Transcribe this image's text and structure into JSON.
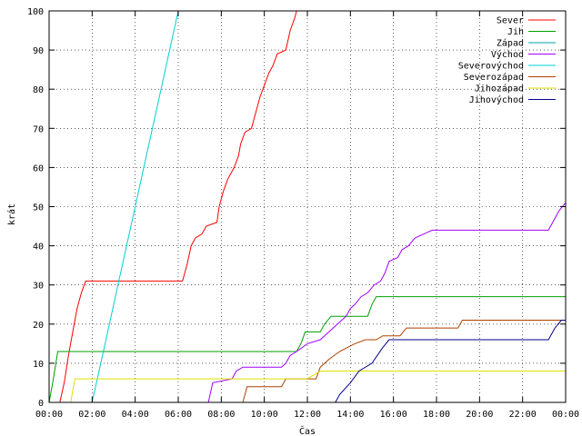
{
  "chart_data": {
    "type": "line",
    "title": "",
    "xlabel": "Čas",
    "ylabel": "krát",
    "xlim": [
      0,
      24
    ],
    "ylim": [
      0,
      100
    ],
    "xticks": [
      0,
      2,
      4,
      6,
      8,
      10,
      12,
      14,
      16,
      18,
      20,
      22,
      24
    ],
    "xtick_labels": [
      "00:00",
      "02:00",
      "04:00",
      "06:00",
      "08:00",
      "10:00",
      "12:00",
      "14:00",
      "16:00",
      "18:00",
      "20:00",
      "22:00",
      "00:00"
    ],
    "yticks": [
      0,
      10,
      20,
      30,
      40,
      50,
      60,
      70,
      80,
      90,
      100
    ],
    "grid": true,
    "legend_position": "top-right",
    "series": [
      {
        "name": "Sever",
        "color": "#ff0000",
        "points": [
          [
            0.5,
            0
          ],
          [
            0.7,
            5
          ],
          [
            0.9,
            12
          ],
          [
            1.1,
            18
          ],
          [
            1.3,
            24
          ],
          [
            1.5,
            28
          ],
          [
            1.7,
            31
          ],
          [
            6.2,
            31
          ],
          [
            6.4,
            35
          ],
          [
            6.6,
            40
          ],
          [
            6.8,
            42
          ],
          [
            7.1,
            43
          ],
          [
            7.3,
            45
          ],
          [
            7.8,
            46
          ],
          [
            7.9,
            50
          ],
          [
            8.1,
            54
          ],
          [
            8.3,
            57
          ],
          [
            8.6,
            60
          ],
          [
            8.8,
            63
          ],
          [
            8.9,
            66
          ],
          [
            9.1,
            69
          ],
          [
            9.4,
            70
          ],
          [
            9.6,
            74
          ],
          [
            9.8,
            78
          ],
          [
            10.0,
            81
          ],
          [
            10.2,
            84
          ],
          [
            10.4,
            86
          ],
          [
            10.6,
            89
          ],
          [
            11.0,
            90
          ],
          [
            11.2,
            95
          ],
          [
            11.4,
            98
          ],
          [
            11.5,
            100
          ]
        ]
      },
      {
        "name": "Jih",
        "color": "#00a000",
        "points": [
          [
            0,
            0
          ],
          [
            0.2,
            6
          ],
          [
            0.4,
            13
          ],
          [
            11.5,
            13
          ],
          [
            11.7,
            15
          ],
          [
            11.9,
            18
          ],
          [
            12.6,
            18
          ],
          [
            12.8,
            20
          ],
          [
            13.1,
            22
          ],
          [
            14.8,
            22
          ],
          [
            15.0,
            25
          ],
          [
            15.2,
            27
          ],
          [
            24,
            27
          ]
        ]
      },
      {
        "name": "Západ",
        "color": "#00a0a0",
        "points": []
      },
      {
        "name": "Východ",
        "color": "#a000ff",
        "points": [
          [
            7.4,
            0
          ],
          [
            7.6,
            5
          ],
          [
            8.5,
            6
          ],
          [
            8.7,
            8
          ],
          [
            9.0,
            9
          ],
          [
            10.8,
            9
          ],
          [
            11.0,
            10
          ],
          [
            11.2,
            12
          ],
          [
            11.5,
            13
          ],
          [
            12.0,
            15
          ],
          [
            12.6,
            16
          ],
          [
            13.0,
            18
          ],
          [
            13.4,
            20
          ],
          [
            13.8,
            22
          ],
          [
            14.0,
            24
          ],
          [
            14.2,
            25
          ],
          [
            14.5,
            27
          ],
          [
            14.8,
            28
          ],
          [
            15.1,
            30
          ],
          [
            15.4,
            31
          ],
          [
            15.6,
            33
          ],
          [
            15.8,
            36
          ],
          [
            16.2,
            37
          ],
          [
            16.4,
            39
          ],
          [
            16.7,
            40
          ],
          [
            17.0,
            42
          ],
          [
            17.4,
            43
          ],
          [
            17.8,
            44
          ],
          [
            23.2,
            44
          ],
          [
            23.4,
            46
          ],
          [
            23.7,
            49
          ],
          [
            24,
            51
          ]
        ]
      },
      {
        "name": "Severovýchod",
        "color": "#00d0d0",
        "points": [
          [
            2.0,
            0
          ],
          [
            2.4,
            10
          ],
          [
            2.8,
            20
          ],
          [
            3.2,
            30
          ],
          [
            3.6,
            40
          ],
          [
            4.0,
            50
          ],
          [
            4.4,
            60
          ],
          [
            4.8,
            70
          ],
          [
            5.2,
            80
          ],
          [
            5.6,
            90
          ],
          [
            6.0,
            100
          ]
        ]
      },
      {
        "name": "Severozápad",
        "color": "#b04000",
        "points": [
          [
            9.0,
            0
          ],
          [
            9.2,
            4
          ],
          [
            10.8,
            4
          ],
          [
            11.0,
            6
          ],
          [
            12.4,
            6
          ],
          [
            12.6,
            9
          ],
          [
            13.0,
            11
          ],
          [
            13.5,
            13
          ],
          [
            14.2,
            15
          ],
          [
            14.7,
            16
          ],
          [
            15.2,
            16
          ],
          [
            15.5,
            17
          ],
          [
            16.3,
            17
          ],
          [
            16.6,
            19
          ],
          [
            19.0,
            19
          ],
          [
            19.2,
            21
          ],
          [
            24,
            21
          ]
        ]
      },
      {
        "name": "Jihozápad",
        "color": "#e0e000",
        "points": [
          [
            1.0,
            0
          ],
          [
            1.2,
            6
          ],
          [
            12.0,
            6
          ],
          [
            12.3,
            7
          ],
          [
            12.6,
            8
          ],
          [
            24,
            8
          ]
        ]
      },
      {
        "name": "Jihovýchod",
        "color": "#000090",
        "points": [
          [
            13.3,
            0
          ],
          [
            13.5,
            2
          ],
          [
            14.0,
            5
          ],
          [
            14.4,
            8
          ],
          [
            15.0,
            10
          ],
          [
            15.5,
            14
          ],
          [
            15.8,
            16
          ],
          [
            23.2,
            16
          ],
          [
            23.5,
            19
          ],
          [
            23.8,
            21
          ],
          [
            24,
            21
          ]
        ]
      }
    ]
  }
}
